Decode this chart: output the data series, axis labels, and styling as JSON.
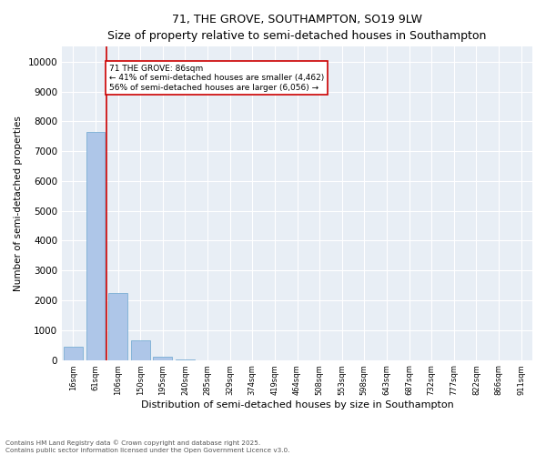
{
  "title_line1": "71, THE GROVE, SOUTHAMPTON, SO19 9LW",
  "title_line2": "Size of property relative to semi-detached houses in Southampton",
  "xlabel": "Distribution of semi-detached houses by size in Southampton",
  "ylabel": "Number of semi-detached properties",
  "categories": [
    "16sqm",
    "61sqm",
    "106sqm",
    "150sqm",
    "195sqm",
    "240sqm",
    "285sqm",
    "329sqm",
    "374sqm",
    "419sqm",
    "464sqm",
    "508sqm",
    "553sqm",
    "598sqm",
    "643sqm",
    "687sqm",
    "732sqm",
    "777sqm",
    "822sqm",
    "866sqm",
    "911sqm"
  ],
  "values": [
    430,
    7650,
    2250,
    650,
    120,
    20,
    0,
    0,
    0,
    0,
    0,
    0,
    0,
    0,
    0,
    0,
    0,
    0,
    0,
    0,
    0
  ],
  "bar_color": "#aec6e8",
  "bar_edge_color": "#7bafd4",
  "vline_color": "#cc0000",
  "vline_x_index": 1.5,
  "annotation_title": "71 THE GROVE: 86sqm",
  "annotation_line1": "← 41% of semi-detached houses are smaller (4,462)",
  "annotation_line2": "56% of semi-detached houses are larger (6,056) →",
  "annotation_box_edgecolor": "#cc0000",
  "background_color": "#e8eef5",
  "grid_color": "#ffffff",
  "ylim_max": 10500,
  "yticks": [
    0,
    1000,
    2000,
    3000,
    4000,
    5000,
    6000,
    7000,
    8000,
    9000,
    10000
  ],
  "footer_line1": "Contains HM Land Registry data © Crown copyright and database right 2025.",
  "footer_line2": "Contains public sector information licensed under the Open Government Licence v3.0."
}
